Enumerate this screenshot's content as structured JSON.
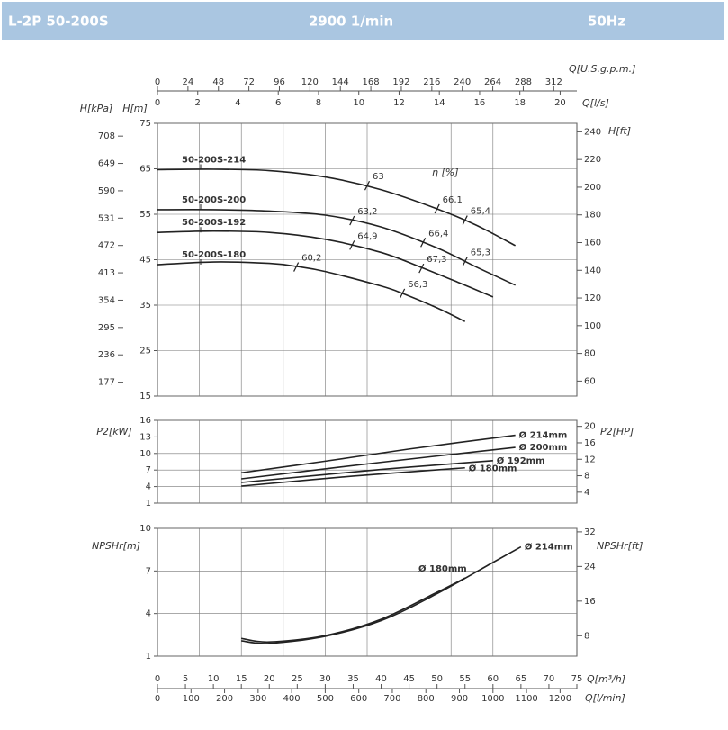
{
  "header": {
    "model": "L-2P 50-200S",
    "speed": "2900 1/min",
    "frequency": "50Hz"
  },
  "q_axes": [
    {
      "label": "Q[m³/h]",
      "lim": [
        0,
        75
      ],
      "ticks": [
        0,
        5,
        10,
        15,
        20,
        25,
        30,
        35,
        40,
        45,
        50,
        55,
        60,
        65,
        70,
        75
      ]
    },
    {
      "label": "Q[l/min]",
      "lim": [
        0,
        1250
      ],
      "ticks": [
        0,
        100,
        200,
        300,
        400,
        500,
        600,
        700,
        800,
        900,
        1000,
        1100,
        1200
      ]
    },
    {
      "label": "Q[U.S.g.p.m.]",
      "lim": [
        0,
        330.2
      ],
      "ticks": [
        0,
        24,
        48,
        72,
        96,
        120,
        144,
        168,
        192,
        216,
        240,
        264,
        288,
        312
      ]
    },
    {
      "label": "Q[l/s]",
      "lim": [
        0,
        20.83
      ],
      "ticks": [
        0,
        2,
        4,
        6,
        8,
        10,
        12,
        14,
        16,
        18,
        20
      ]
    }
  ],
  "chart_data": [
    {
      "type": "line",
      "grid": true,
      "ylabel": "H[m]",
      "ylim": [
        15,
        75
      ],
      "yticks": [
        15,
        25,
        35,
        45,
        55,
        65,
        75
      ],
      "y2label": "H[ft]",
      "y2lim": [
        49.2,
        246.1
      ],
      "y2ticks": [
        60,
        80,
        100,
        120,
        140,
        160,
        180,
        200,
        220,
        240
      ],
      "y3label": "H[kPa]",
      "y3lim": [
        147.1,
        735.5
      ],
      "y3ticks": [
        177,
        236,
        295,
        354,
        413,
        472,
        531,
        590,
        649,
        708
      ],
      "annotation": "η [%]",
      "series": [
        {
          "name": "50-200S-214",
          "color": "#222222",
          "x": [
            0,
            10,
            20,
            30,
            40,
            50,
            57,
            64
          ],
          "values": [
            64.8,
            64.9,
            64.6,
            63.2,
            60.4,
            56.2,
            52.6,
            48.1
          ]
        },
        {
          "name": "50-200S-200",
          "color": "#222222",
          "x": [
            0,
            10,
            20,
            30,
            40,
            50,
            57,
            64
          ],
          "values": [
            56,
            56,
            55.7,
            54.8,
            52.2,
            47.6,
            43.4,
            39.4
          ]
        },
        {
          "name": "50-200S-192",
          "color": "#222222",
          "x": [
            0,
            10,
            20,
            30,
            40,
            47,
            54,
            60
          ],
          "values": [
            51,
            51.3,
            51,
            49.5,
            46.6,
            43.4,
            39.9,
            36.8
          ]
        },
        {
          "name": "50-200S-180",
          "color": "#222222",
          "x": [
            0,
            10,
            20,
            25,
            30,
            40,
            44,
            50,
            55
          ],
          "values": [
            43.9,
            44.5,
            44.2,
            43.5,
            42.4,
            39.2,
            37.5,
            34.4,
            31.4
          ]
        }
      ],
      "efficiency_marks": [
        {
          "label": "63",
          "q": 37.5,
          "h": 61.3
        },
        {
          "label": "66,1",
          "q": 50,
          "h": 56.2
        },
        {
          "label": "65,4",
          "q": 55,
          "h": 53.7
        },
        {
          "label": "63,2",
          "q": 34.8,
          "h": 53.6
        },
        {
          "label": "66,4",
          "q": 47.5,
          "h": 48.8
        },
        {
          "label": "65,3",
          "q": 55,
          "h": 44.6
        },
        {
          "label": "64,9",
          "q": 34.8,
          "h": 48.2
        },
        {
          "label": "67,3",
          "q": 47.2,
          "h": 43.1
        },
        {
          "label": "60,2",
          "q": 24.8,
          "h": 43.4
        },
        {
          "label": "66,3",
          "q": 43.8,
          "h": 37.6
        }
      ]
    },
    {
      "type": "line",
      "grid": true,
      "ylabel": "P2[kW]",
      "ylim": [
        1,
        16
      ],
      "yticks": [
        1,
        4,
        7,
        10,
        13,
        16
      ],
      "y2label": "P2[HP]",
      "y2lim": [
        1.34,
        21.46
      ],
      "y2ticks": [
        4,
        8,
        12,
        16,
        20
      ],
      "series": [
        {
          "name": "Ø 214mm",
          "color": "#222222",
          "x": [
            15,
            30,
            45,
            64
          ],
          "values": [
            6.5,
            8.6,
            10.8,
            13.3
          ]
        },
        {
          "name": "Ø 200mm",
          "color": "#222222",
          "x": [
            15,
            40,
            64
          ],
          "values": [
            5.4,
            8.4,
            11.1
          ]
        },
        {
          "name": "Ø 192mm",
          "color": "#222222",
          "x": [
            15,
            40,
            60
          ],
          "values": [
            4.75,
            7.1,
            8.7
          ]
        },
        {
          "name": "Ø 180mm",
          "color": "#222222",
          "x": [
            15,
            35,
            55
          ],
          "values": [
            4.1,
            5.9,
            7.4
          ]
        }
      ]
    },
    {
      "type": "line",
      "grid": true,
      "ylabel": "NPSHr[m]",
      "ylim": [
        1,
        10
      ],
      "yticks": [
        1,
        4,
        7,
        10
      ],
      "y2label": "NPSHr[ft]",
      "y2lim": [
        3.28,
        32.81
      ],
      "y2ticks": [
        8,
        16,
        24,
        32
      ],
      "series": [
        {
          "name": "Ø 214mm",
          "color": "#222222",
          "x": [
            15,
            20,
            30,
            40,
            50,
            60,
            65
          ],
          "values": [
            2.08,
            1.9,
            2.4,
            3.5,
            5.4,
            7.6,
            8.7
          ]
        },
        {
          "name": "Ø 180mm",
          "color": "#222222",
          "x": [
            15,
            20,
            30,
            40,
            50,
            55
          ],
          "values": [
            2.25,
            2.0,
            2.45,
            3.6,
            5.5,
            6.5
          ]
        }
      ]
    }
  ]
}
